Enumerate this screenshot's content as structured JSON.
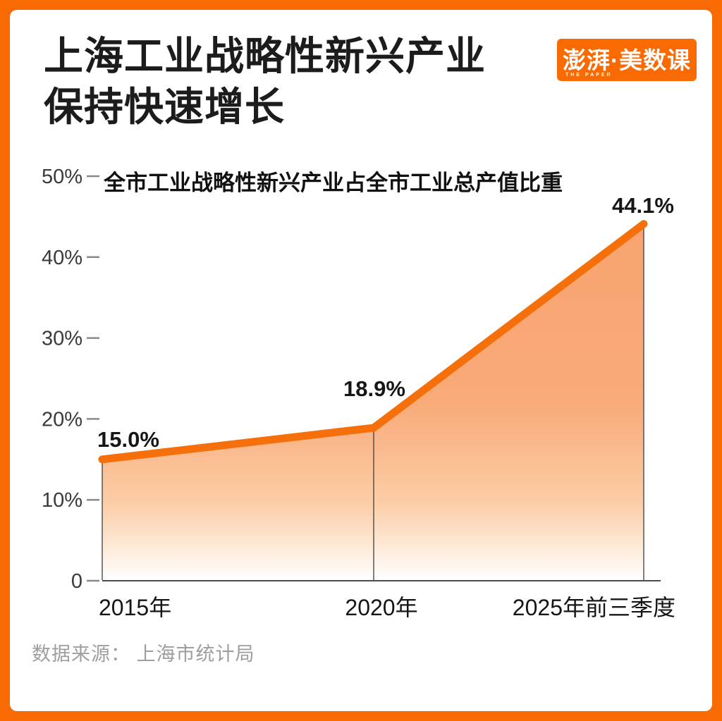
{
  "header": {
    "title_line1": "上海工业战略性新兴产业",
    "title_line2": "保持快速增长",
    "logo": {
      "text": "澎湃·美数课",
      "subtext": "THE PAPER"
    }
  },
  "chart_data": {
    "type": "area",
    "title": "全市工业战略性新兴产业占全市工业总产值比重",
    "categories": [
      "2015年",
      "2020年",
      "2025年前三季度"
    ],
    "values": [
      15.0,
      18.9,
      44.1
    ],
    "point_labels": [
      "15.0%",
      "18.9%",
      "44.1%"
    ],
    "ylabel": "",
    "xlabel": "",
    "ylim": [
      0,
      50
    ],
    "yticks": [
      {
        "value": 0,
        "label": "0"
      },
      {
        "value": 10,
        "label": "10%"
      },
      {
        "value": 20,
        "label": "20%"
      },
      {
        "value": 30,
        "label": "30%"
      },
      {
        "value": 40,
        "label": "40%"
      },
      {
        "value": 50,
        "label": "50%"
      }
    ],
    "grid": "off",
    "legend": "none",
    "colors": {
      "line": "#F5700A",
      "area_top": "#F9A470",
      "area_mid": "#FCCDA6",
      "area_bottom": "#FFFFFF",
      "axis": "#4c4c4c",
      "guide": "#3f3f3f",
      "tick_dash": "#8a8a8a",
      "tick_text": "#3a3a3a",
      "label_text": "#161616",
      "accent": "#FA6A02"
    }
  },
  "footer": {
    "source": "数据来源： 上海市统计局"
  }
}
